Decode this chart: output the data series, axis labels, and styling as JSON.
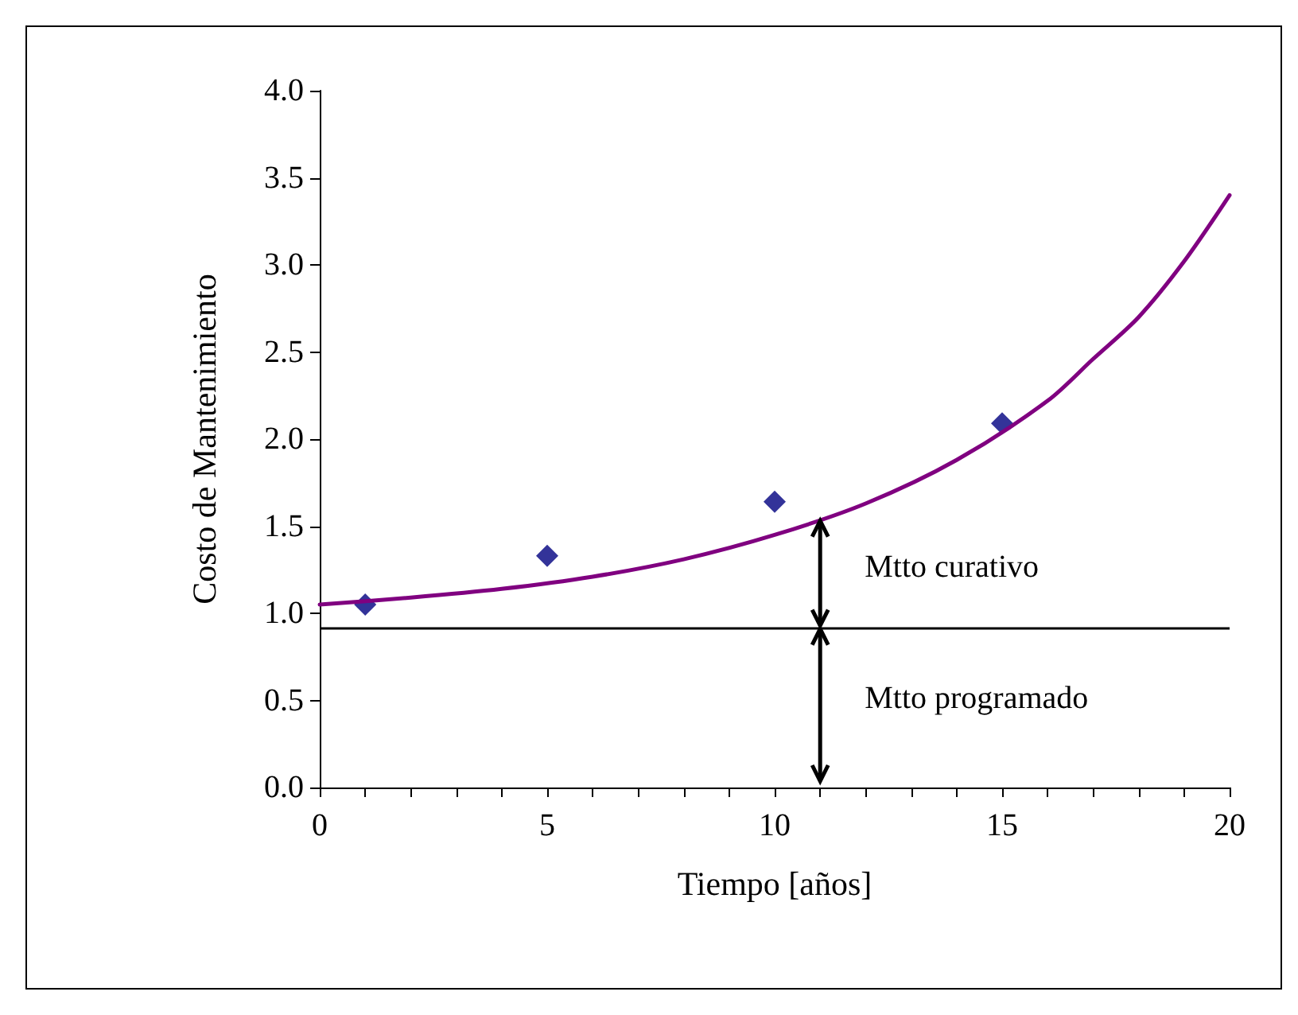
{
  "chart_data": {
    "type": "scatter",
    "xlabel": "Tiempo [años]",
    "ylabel": "Costo de Mantenimiento",
    "xlim": [
      0,
      20
    ],
    "ylim": [
      0,
      4
    ],
    "xticks": [
      0,
      {
        "value": 1,
        "label": null
      },
      {
        "value": 2,
        "label": null
      },
      {
        "value": 3,
        "label": null
      },
      {
        "value": 4,
        "label": null
      },
      5,
      {
        "value": 6,
        "label": null
      },
      {
        "value": 7,
        "label": null
      },
      {
        "value": 8,
        "label": null
      },
      {
        "value": 9,
        "label": null
      },
      10,
      {
        "value": 11,
        "label": null
      },
      {
        "value": 12,
        "label": null
      },
      {
        "value": 13,
        "label": null
      },
      {
        "value": 14,
        "label": null
      },
      15,
      {
        "value": 16,
        "label": null
      },
      {
        "value": 17,
        "label": null
      },
      {
        "value": 18,
        "label": null
      },
      {
        "value": 19,
        "label": null
      },
      20
    ],
    "yticks": [
      {
        "value": 0,
        "label": "0.0"
      },
      {
        "value": 0.5,
        "label": "0.5"
      },
      {
        "value": 1,
        "label": "1.0"
      },
      {
        "value": 1.5,
        "label": "1.5"
      },
      {
        "value": 2,
        "label": "2.0"
      },
      {
        "value": 2.5,
        "label": "2.5"
      },
      {
        "value": 3,
        "label": "3.0"
      },
      {
        "value": 3.5,
        "label": "3.5"
      },
      {
        "value": 4,
        "label": "4.0"
      }
    ],
    "grid": false,
    "series": [
      {
        "type": "scatter",
        "color": "#000080",
        "marker": "diamond",
        "x": [
          1,
          5,
          10,
          15
        ],
        "values": [
          1.05,
          1.33,
          1.64,
          2.09
        ]
      },
      {
        "type": "line",
        "color": "#800080",
        "marker": "none",
        "line_style": "solid",
        "x": [
          0,
          2,
          4,
          6,
          8,
          10,
          12,
          14,
          16,
          17,
          18,
          19,
          20
        ],
        "values": [
          1.05,
          1.09,
          1.14,
          1.21,
          1.31,
          1.45,
          1.63,
          1.88,
          2.22,
          2.46,
          2.7,
          3.02,
          3.4
        ]
      }
    ],
    "ref_lines": [
      {
        "axis": "y",
        "value": 0.92,
        "color": "#000000",
        "line_style": "solid"
      }
    ],
    "annotations": [
      "Mtto curativo",
      "Mtto programado"
    ]
  }
}
